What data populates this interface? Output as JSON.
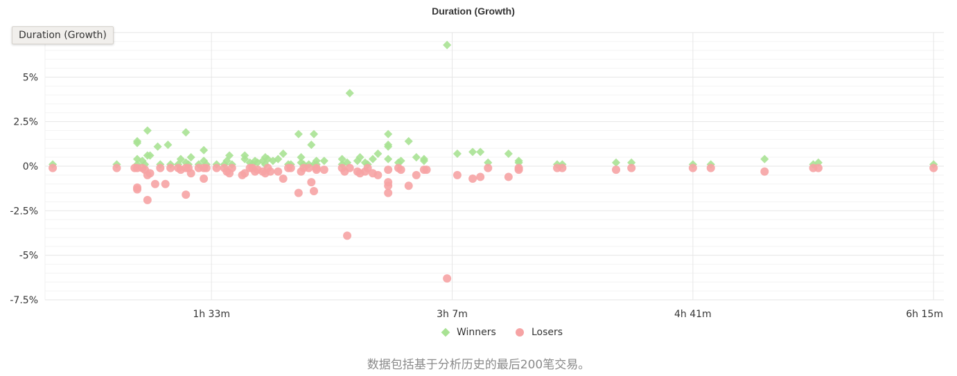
{
  "tooltip": "Duration (Growth)",
  "footnote": "数据包括基于分析历史的最后200笔交易。",
  "colors": {
    "winners": "#a8e293",
    "losers": "#f6a3a4",
    "grid": "#ececec",
    "axis_text": "#333333"
  },
  "chart_data": {
    "type": "scatter",
    "title": "Duration (Growth)",
    "xlabel": "",
    "ylabel": "",
    "x_unit": "minutes",
    "x_ticks": [
      {
        "value": 93,
        "label": "1h 33m"
      },
      {
        "value": 187,
        "label": "3h 7m"
      },
      {
        "value": 281,
        "label": "4h 41m"
      },
      {
        "value": 375,
        "label": "6h 15m"
      }
    ],
    "xlim": [
      28,
      379
    ],
    "y_unit": "percent",
    "y_ticks": [
      {
        "value": 5,
        "label": "5%"
      },
      {
        "value": 2.5,
        "label": "2.5%"
      },
      {
        "value": 0,
        "label": "0%"
      },
      {
        "value": -2.5,
        "label": "-2.5%"
      },
      {
        "value": -5,
        "label": "-5%"
      },
      {
        "value": -7.5,
        "label": "-7.5%"
      }
    ],
    "ylim": [
      -7.5,
      7.5
    ],
    "grid": true,
    "legend": "bottom-center",
    "series": [
      {
        "name": "Winners",
        "marker": "diamond",
        "points": [
          [
            31,
            0.1
          ],
          [
            56,
            0.1
          ],
          [
            64,
            1.4
          ],
          [
            64,
            1.3
          ],
          [
            64,
            0.4
          ],
          [
            64,
            0.1
          ],
          [
            66,
            0.3
          ],
          [
            67,
            0.1
          ],
          [
            68,
            2.0
          ],
          [
            68,
            0.6
          ],
          [
            69,
            0.6
          ],
          [
            72,
            1.1
          ],
          [
            73,
            0.1
          ],
          [
            76,
            1.2
          ],
          [
            77,
            0.1
          ],
          [
            80,
            0.1
          ],
          [
            81,
            0.4
          ],
          [
            83,
            1.9
          ],
          [
            83,
            0.2
          ],
          [
            84,
            0.1
          ],
          [
            85,
            0.5
          ],
          [
            88,
            0.1
          ],
          [
            90,
            0.3
          ],
          [
            90,
            0.9
          ],
          [
            91,
            0.1
          ],
          [
            95,
            0.1
          ],
          [
            98,
            0.1
          ],
          [
            99,
            0.3
          ],
          [
            100,
            0.6
          ],
          [
            101,
            0.1
          ],
          [
            106,
            0.6
          ],
          [
            106,
            0.4
          ],
          [
            108,
            0.2
          ],
          [
            109,
            0.1
          ],
          [
            110,
            0.3
          ],
          [
            111,
            0.2
          ],
          [
            113,
            0.3
          ],
          [
            114,
            0.5
          ],
          [
            114,
            0.1
          ],
          [
            115,
            0.4
          ],
          [
            117,
            0.3
          ],
          [
            119,
            0.4
          ],
          [
            121,
            0.7
          ],
          [
            123,
            0.1
          ],
          [
            124,
            0.1
          ],
          [
            127,
            1.8
          ],
          [
            128,
            0.2
          ],
          [
            128,
            0.5
          ],
          [
            129,
            0.1
          ],
          [
            131,
            0.1
          ],
          [
            132,
            1.2
          ],
          [
            133,
            0.1
          ],
          [
            133,
            1.8
          ],
          [
            134,
            0.3
          ],
          [
            134,
            0.1
          ],
          [
            137,
            0.3
          ],
          [
            144,
            0.4
          ],
          [
            144,
            0.1
          ],
          [
            146,
            0.2
          ],
          [
            147,
            4.1
          ],
          [
            150,
            0.3
          ],
          [
            151,
            0.5
          ],
          [
            153,
            0.2
          ],
          [
            154,
            0.1
          ],
          [
            156,
            0.4
          ],
          [
            158,
            0.7
          ],
          [
            162,
            1.8
          ],
          [
            162,
            1.2
          ],
          [
            162,
            1.1
          ],
          [
            162,
            0.4
          ],
          [
            166,
            0.2
          ],
          [
            167,
            0.3
          ],
          [
            170,
            1.4
          ],
          [
            173,
            0.5
          ],
          [
            176,
            0.4
          ],
          [
            176,
            0.3
          ],
          [
            185,
            6.8
          ],
          [
            189,
            0.7
          ],
          [
            195,
            0.8
          ],
          [
            198,
            0.8
          ],
          [
            201,
            0.2
          ],
          [
            209,
            0.7
          ],
          [
            213,
            0.3
          ],
          [
            213,
            0.2
          ],
          [
            228,
            0.1
          ],
          [
            230,
            0.1
          ],
          [
            251,
            0.2
          ],
          [
            257,
            0.2
          ],
          [
            281,
            0.1
          ],
          [
            288,
            0.1
          ],
          [
            309,
            0.4
          ],
          [
            328,
            0.1
          ],
          [
            330,
            0.2
          ],
          [
            375,
            0.1
          ]
        ]
      },
      {
        "name": "Losers",
        "marker": "circle",
        "points": [
          [
            31,
            -0.1
          ],
          [
            56,
            -0.1
          ],
          [
            63,
            -0.1
          ],
          [
            64,
            -1.3
          ],
          [
            64,
            -1.2
          ],
          [
            64,
            -0.1
          ],
          [
            66,
            -0.1
          ],
          [
            67,
            -0.2
          ],
          [
            68,
            -1.9
          ],
          [
            68,
            -0.5
          ],
          [
            69,
            -0.4
          ],
          [
            71,
            -1.0
          ],
          [
            73,
            -0.1
          ],
          [
            75,
            -1.0
          ],
          [
            77,
            -0.1
          ],
          [
            80,
            -0.1
          ],
          [
            81,
            -0.2
          ],
          [
            83,
            -1.6
          ],
          [
            83,
            -0.1
          ],
          [
            84,
            -0.1
          ],
          [
            85,
            -0.4
          ],
          [
            88,
            -0.1
          ],
          [
            90,
            -0.1
          ],
          [
            90,
            -0.7
          ],
          [
            91,
            -0.1
          ],
          [
            95,
            -0.1
          ],
          [
            98,
            -0.1
          ],
          [
            99,
            -0.3
          ],
          [
            100,
            -0.4
          ],
          [
            101,
            -0.1
          ],
          [
            105,
            -0.5
          ],
          [
            106,
            -0.4
          ],
          [
            108,
            -0.1
          ],
          [
            109,
            -0.1
          ],
          [
            110,
            -0.3
          ],
          [
            111,
            -0.2
          ],
          [
            113,
            -0.3
          ],
          [
            114,
            -0.4
          ],
          [
            115,
            -0.1
          ],
          [
            116,
            -0.3
          ],
          [
            119,
            -0.3
          ],
          [
            121,
            -0.7
          ],
          [
            123,
            -0.1
          ],
          [
            124,
            -0.1
          ],
          [
            127,
            -1.5
          ],
          [
            128,
            -0.3
          ],
          [
            129,
            -0.1
          ],
          [
            131,
            -0.1
          ],
          [
            132,
            -0.9
          ],
          [
            133,
            -1.4
          ],
          [
            134,
            -0.2
          ],
          [
            134,
            -0.1
          ],
          [
            137,
            -0.2
          ],
          [
            144,
            -0.1
          ],
          [
            145,
            -0.3
          ],
          [
            146,
            -3.9
          ],
          [
            147,
            -0.1
          ],
          [
            150,
            -0.3
          ],
          [
            151,
            -0.4
          ],
          [
            153,
            -0.3
          ],
          [
            154,
            -0.1
          ],
          [
            156,
            -0.4
          ],
          [
            158,
            -0.5
          ],
          [
            162,
            -1.5
          ],
          [
            162,
            -1.1
          ],
          [
            162,
            -0.9
          ],
          [
            162,
            -0.2
          ],
          [
            166,
            -0.1
          ],
          [
            167,
            -0.2
          ],
          [
            170,
            -1.1
          ],
          [
            173,
            -0.5
          ],
          [
            176,
            -0.2
          ],
          [
            177,
            -0.2
          ],
          [
            185,
            -6.3
          ],
          [
            189,
            -0.5
          ],
          [
            195,
            -0.7
          ],
          [
            198,
            -0.6
          ],
          [
            201,
            -0.1
          ],
          [
            209,
            -0.6
          ],
          [
            213,
            -0.2
          ],
          [
            213,
            -0.1
          ],
          [
            228,
            -0.1
          ],
          [
            230,
            -0.1
          ],
          [
            251,
            -0.2
          ],
          [
            257,
            -0.1
          ],
          [
            281,
            -0.1
          ],
          [
            288,
            -0.1
          ],
          [
            309,
            -0.3
          ],
          [
            328,
            -0.1
          ],
          [
            330,
            -0.1
          ],
          [
            375,
            -0.1
          ]
        ]
      }
    ]
  }
}
